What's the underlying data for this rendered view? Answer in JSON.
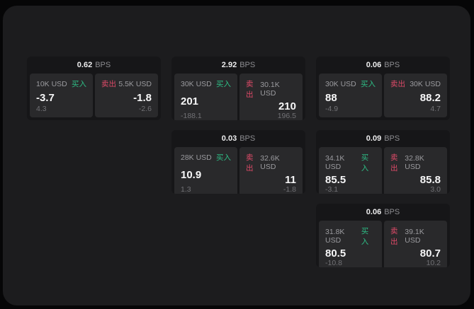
{
  "theme": {
    "page_bg": "#060607",
    "panel_bg": "#1c1c1e",
    "card_bg": "#161618",
    "cell_bg": "#29292b",
    "buy_color": "#2ebd85",
    "sell_color": "#de4a68"
  },
  "unit_label": "BPS",
  "buy_label": "买入",
  "sell_label": "卖出",
  "cards": [
    {
      "bps": "0.62",
      "buy": {
        "amount": "10K USD",
        "price": "-3.7",
        "sub": "4.3"
      },
      "sell": {
        "amount": "5.5K USD",
        "price": "-1.8",
        "sub": "-2.6"
      }
    },
    {
      "bps": "2.92",
      "buy": {
        "amount": "30K USD",
        "price": "201",
        "sub": "-188.1"
      },
      "sell": {
        "amount": "30.1K USD",
        "price": "210",
        "sub": "196.5"
      }
    },
    {
      "bps": "0.06",
      "buy": {
        "amount": "30K USD",
        "price": "88",
        "sub": "-4.9"
      },
      "sell": {
        "amount": "30K USD",
        "price": "88.2",
        "sub": "4.7"
      }
    },
    {
      "bps": "0.03",
      "buy": {
        "amount": "28K USD",
        "price": "10.9",
        "sub": "1.3"
      },
      "sell": {
        "amount": "32.6K USD",
        "price": "11",
        "sub": "-1.8"
      }
    },
    {
      "bps": "0.09",
      "buy": {
        "amount": "34.1K USD",
        "price": "85.5",
        "sub": "-3.1"
      },
      "sell": {
        "amount": "32.8K USD",
        "price": "85.8",
        "sub": "3.0"
      }
    },
    {
      "bps": "0.06",
      "buy": {
        "amount": "31.8K USD",
        "price": "80.5",
        "sub": "-10.8"
      },
      "sell": {
        "amount": "39.1K USD",
        "price": "80.7",
        "sub": "10.2"
      }
    }
  ]
}
